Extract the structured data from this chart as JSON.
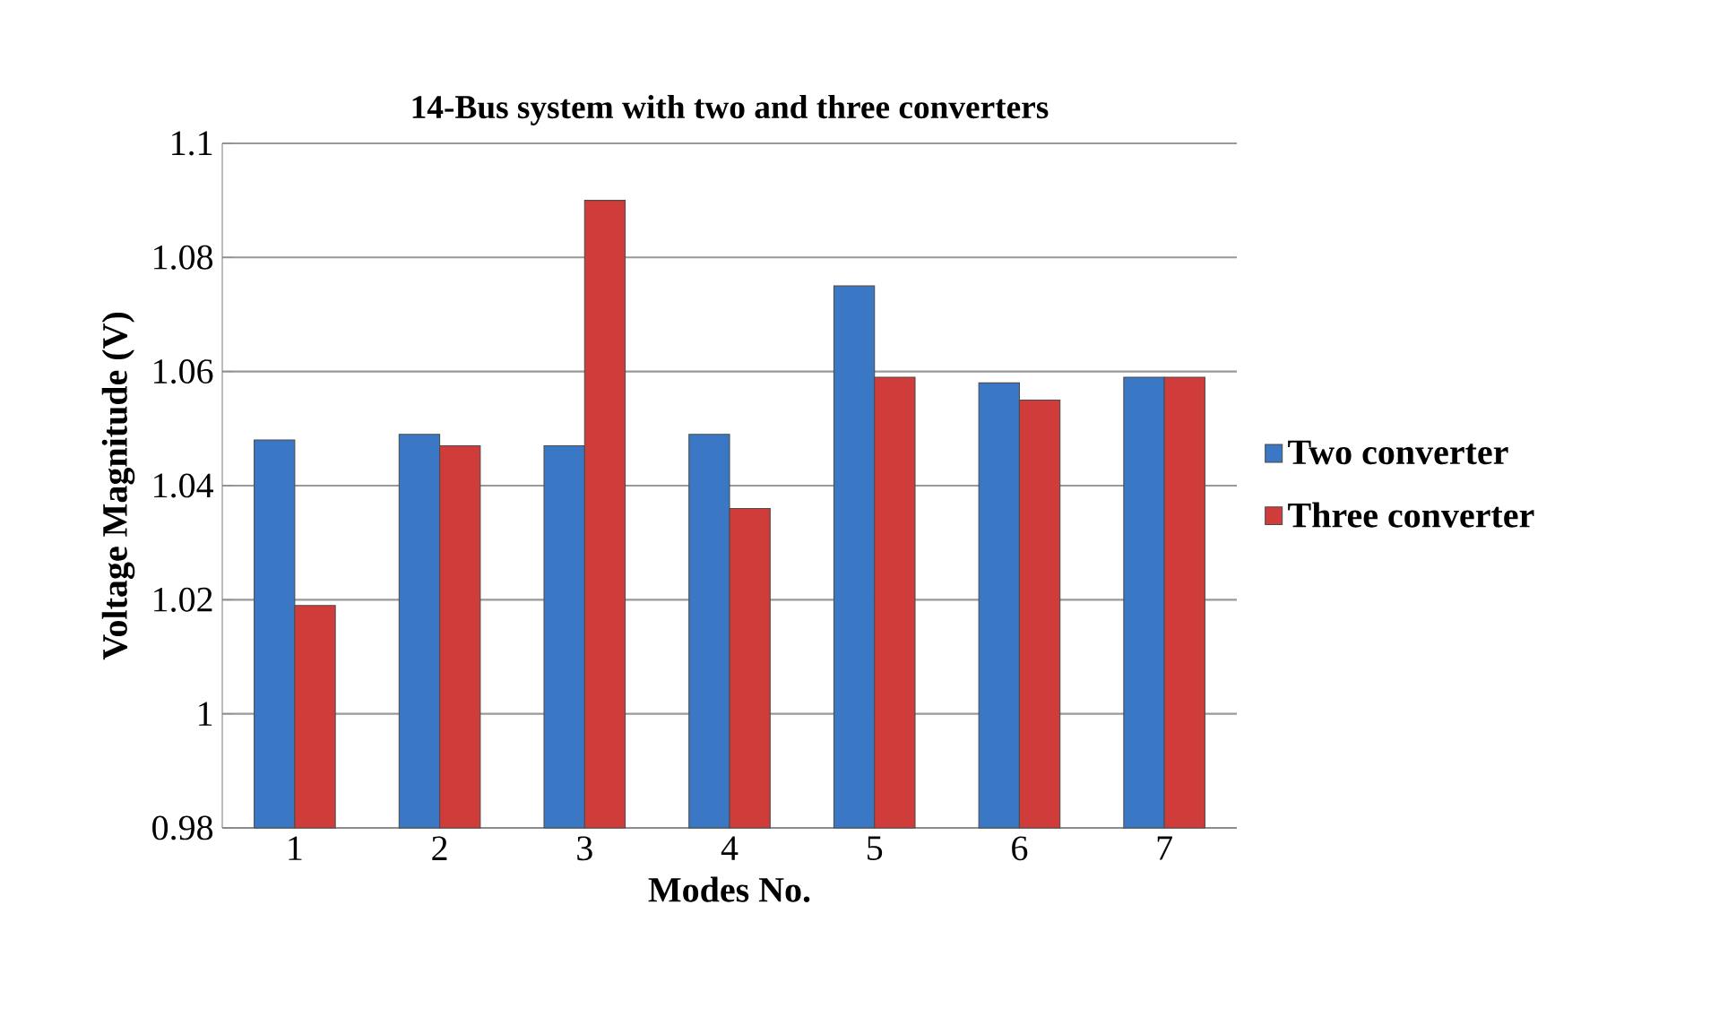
{
  "chart_data": {
    "type": "bar",
    "title": "14-Bus system with two and three converters",
    "xlabel": "Modes No.",
    "ylabel": "Voltage Magnitude (V)",
    "categories": [
      "1",
      "2",
      "3",
      "4",
      "5",
      "6",
      "7"
    ],
    "series": [
      {
        "name": "Two converter",
        "color": "#3a78c6",
        "values": [
          1.048,
          1.049,
          1.047,
          1.049,
          1.075,
          1.058,
          1.059
        ]
      },
      {
        "name": "Three converter",
        "color": "#cf3c3a",
        "values": [
          1.019,
          1.047,
          1.09,
          1.036,
          1.059,
          1.055,
          1.059
        ]
      }
    ],
    "ylim": [
      0.98,
      1.1
    ],
    "yticks": [
      0.98,
      1,
      1.02,
      1.04,
      1.06,
      1.08,
      1.1
    ],
    "grid": "y",
    "legend": "right"
  }
}
